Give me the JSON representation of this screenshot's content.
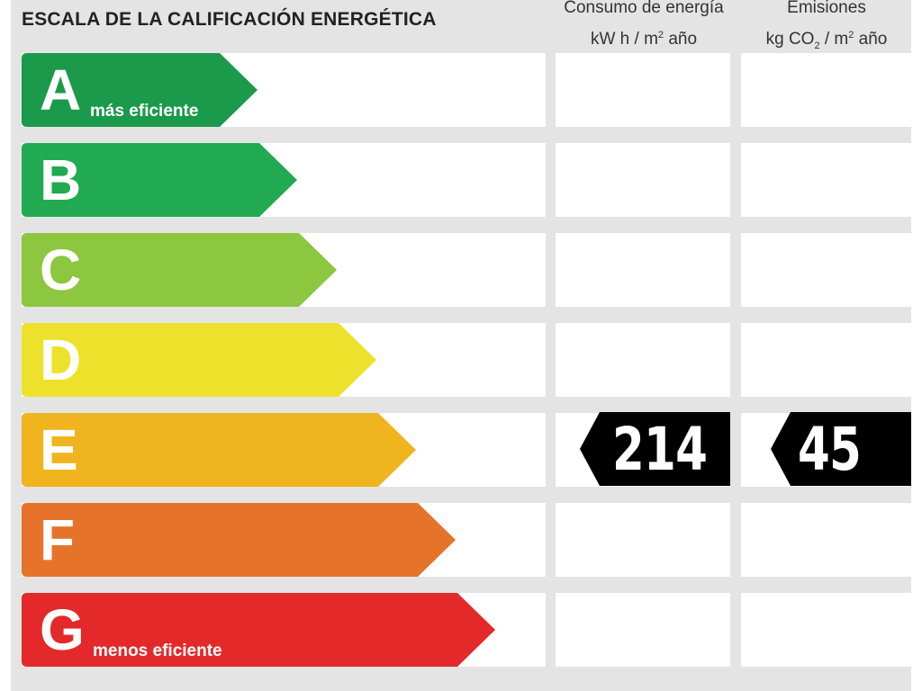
{
  "title": "ESCALA DE LA CALIFICACIÓN ENERGÉTICA",
  "consumption_header": {
    "line1": "Consumo de energía",
    "unit_prefix": "kW h  / m",
    "unit_sup": "2",
    "unit_suffix": " año"
  },
  "emissions_header": {
    "line1": "Emisiones",
    "unit_prefix": "kg CO",
    "unit_sub": "2",
    "unit_suffix": "  / m",
    "unit_sup": "2",
    "unit_tail": " año"
  },
  "bands": [
    {
      "letter": "A",
      "note": "más eficiente",
      "color": "#1a9a4a"
    },
    {
      "letter": "B",
      "note": "",
      "color": "#21aa52"
    },
    {
      "letter": "C",
      "note": "",
      "color": "#8dc63f"
    },
    {
      "letter": "D",
      "note": "",
      "color": "#ede22b"
    },
    {
      "letter": "E",
      "note": "",
      "color": "#f0b41e"
    },
    {
      "letter": "F",
      "note": "",
      "color": "#e5742a"
    },
    {
      "letter": "G",
      "note": "menos eficiente",
      "color": "#e3292a"
    }
  ],
  "rating": {
    "band": "E",
    "consumption_value": "214",
    "emissions_value": "45",
    "marker_color": "#000000"
  }
}
